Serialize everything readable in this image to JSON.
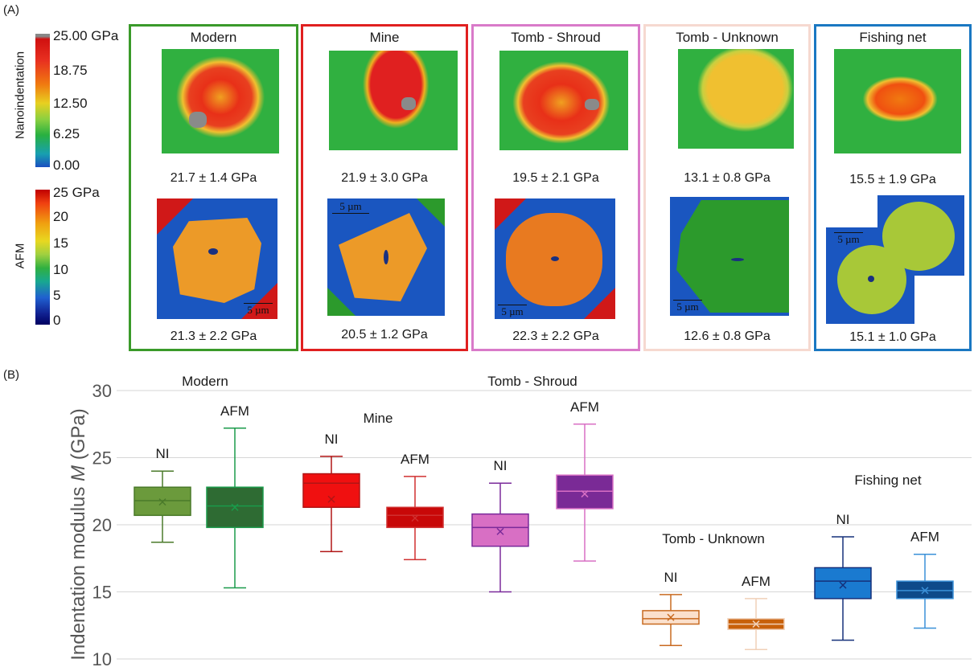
{
  "panel_a_label": "(A)",
  "panel_b_label": "(B)",
  "colorbars": {
    "nanoindentation": {
      "title": "Nanoindentation",
      "ticks": [
        "25.00 GPa",
        "18.75",
        "12.50",
        "6.25",
        "0.00"
      ]
    },
    "afm": {
      "title": "AFM",
      "ticks": [
        "25 GPa",
        "20",
        "15",
        "10",
        "5",
        "0"
      ]
    }
  },
  "samples": [
    {
      "title": "Modern",
      "ni_value": "21.7 ± 1.4 GPa",
      "afm_value": "21.3 ± 2.2 GPa",
      "border": "#3a9a2a",
      "scale": "5 µm"
    },
    {
      "title": "Mine",
      "ni_value": "21.9 ± 3.0 GPa",
      "afm_value": "20.5 ± 1.2 GPa",
      "border": "#e02020",
      "scale": "5 µm"
    },
    {
      "title": "Tomb - Shroud",
      "ni_value": "19.5 ± 2.1 GPa",
      "afm_value": "22.3 ± 2.2 GPa",
      "border": "#d97ac9",
      "scale": "5 µm"
    },
    {
      "title": "Tomb - Unknown",
      "ni_value": "13.1 ± 0.8 GPa",
      "afm_value": "12.6 ± 0.8 GPa",
      "border": "#f6d9d0",
      "scale": "5 µm"
    },
    {
      "title": "Fishing net",
      "ni_value": "15.5 ± 1.9 GPa",
      "afm_value": "15.1 ± 1.0 GPa",
      "border": "#1a78c2",
      "scale": "5 µm"
    }
  ],
  "chart_data": {
    "type": "box",
    "ylabel": "Indentation modulus M (GPa)",
    "ylim": [
      10,
      30
    ],
    "yticks": [
      10,
      15,
      20,
      25,
      30
    ],
    "grid": true,
    "groups": [
      {
        "name": "Modern",
        "boxes": [
          {
            "label": "NI",
            "min": 18.7,
            "q1": 20.7,
            "median": 21.8,
            "q3": 22.8,
            "max": 24.0,
            "mean": 21.7,
            "fill": "#6b9a3c",
            "stroke": "#4a7a2a"
          },
          {
            "label": "AFM",
            "min": 15.3,
            "q1": 19.8,
            "median": 21.4,
            "q3": 22.8,
            "max": 27.2,
            "mean": 21.3,
            "fill": "#2e6b33",
            "stroke": "#1a9a4a"
          }
        ]
      },
      {
        "name": "Mine",
        "boxes": [
          {
            "label": "NI",
            "min": 18.0,
            "q1": 21.3,
            "median": 23.1,
            "q3": 23.8,
            "max": 25.1,
            "mean": 21.9,
            "fill": "#f01010",
            "stroke": "#b01515"
          },
          {
            "label": "AFM",
            "min": 17.4,
            "q1": 19.8,
            "median": 20.7,
            "q3": 21.3,
            "max": 23.6,
            "mean": 20.5,
            "fill": "#c80808",
            "stroke": "#d03030"
          }
        ]
      },
      {
        "name": "Tomb - Shroud",
        "boxes": [
          {
            "label": "NI",
            "min": 15.0,
            "q1": 18.4,
            "median": 19.8,
            "q3": 20.8,
            "max": 23.1,
            "mean": 19.5,
            "fill": "#d86fc4",
            "stroke": "#7a2a9a"
          },
          {
            "label": "AFM",
            "min": 17.3,
            "q1": 21.2,
            "median": 22.5,
            "q3": 23.7,
            "max": 27.5,
            "mean": 22.3,
            "fill": "#7a2a96",
            "stroke": "#d86fc4"
          }
        ]
      },
      {
        "name": "Tomb - Unknown",
        "boxes": [
          {
            "label": "NI",
            "min": 11.0,
            "q1": 12.6,
            "median": 13.0,
            "q3": 13.6,
            "max": 14.8,
            "mean": 13.1,
            "fill": "#fbe0cc",
            "stroke": "#c86a20"
          },
          {
            "label": "AFM",
            "min": 10.7,
            "q1": 12.2,
            "median": 12.6,
            "q3": 13.0,
            "max": 14.5,
            "mean": 12.6,
            "fill": "#c8600a",
            "stroke": "#f0d0b8"
          }
        ]
      },
      {
        "name": "Fishing net",
        "boxes": [
          {
            "label": "NI",
            "min": 11.4,
            "q1": 14.5,
            "median": 15.8,
            "q3": 16.8,
            "max": 19.1,
            "mean": 15.5,
            "fill": "#1a7ad0",
            "stroke": "#15307a"
          },
          {
            "label": "AFM",
            "min": 12.3,
            "q1": 14.5,
            "median": 15.1,
            "q3": 15.8,
            "max": 17.8,
            "mean": 15.1,
            "fill": "#0e4a8a",
            "stroke": "#3a90d8"
          }
        ]
      }
    ]
  }
}
